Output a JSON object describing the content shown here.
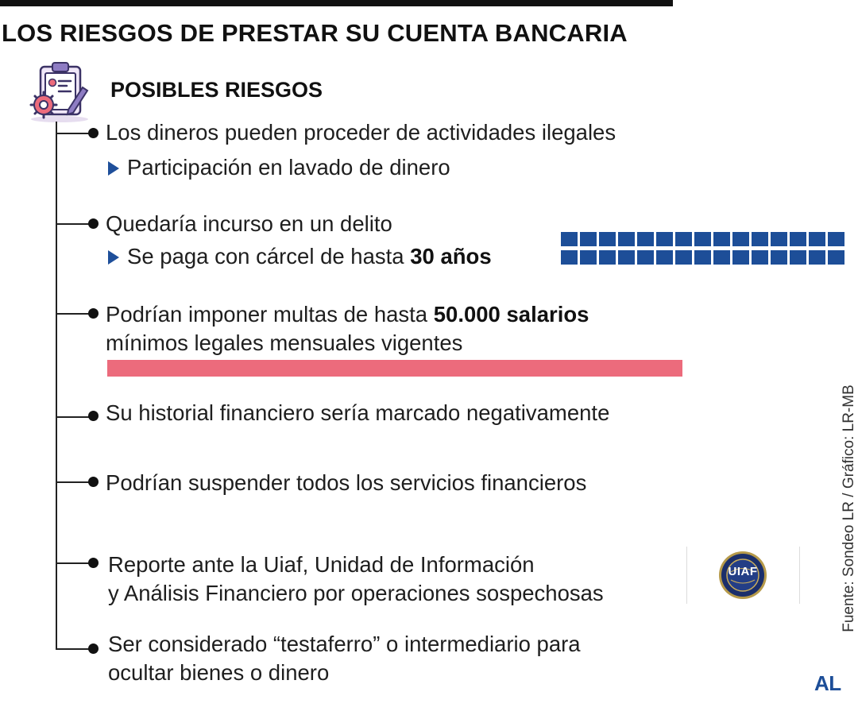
{
  "title": "LOS RIESGOS DE PRESTAR SU CUENTA BANCARIA",
  "section": {
    "title": "POSIBLES RIESGOS",
    "icon": "clipboard-gear-icon"
  },
  "items": [
    {
      "text": "Los dineros pueden proceder de actividades ilegales",
      "sub": "Participación en lavado de dinero"
    },
    {
      "text": "Quedaría incurso en un delito",
      "sub_prefix": "Se paga con cárcel de hasta ",
      "sub_bold": "30 años",
      "years_icons": 30
    },
    {
      "line1_prefix": "Podrían imponer multas de hasta ",
      "line1_bold": "50.000 salarios",
      "line2": "mínimos legales mensuales vigentes"
    },
    {
      "text": "Su historial financiero sería marcado negativamente"
    },
    {
      "text": "Podrían suspender todos los servicios financieros"
    },
    {
      "line1": "Reporte ante la Uiaf, Unidad de Información",
      "line2": "y Análisis Financiero por operaciones sospechosas",
      "logo_text": "UIAF"
    },
    {
      "line1": "Ser considerado “testaferro” o intermediario para",
      "line2": "ocultar bienes o dinero"
    }
  ],
  "source": "Fuente:  Sondeo LR / Gráfico: LR-MB",
  "brand": "AL",
  "colors": {
    "accent_blue": "#1d4e98",
    "bar_pink": "#ec6b7c",
    "text": "#1e1e1e"
  }
}
